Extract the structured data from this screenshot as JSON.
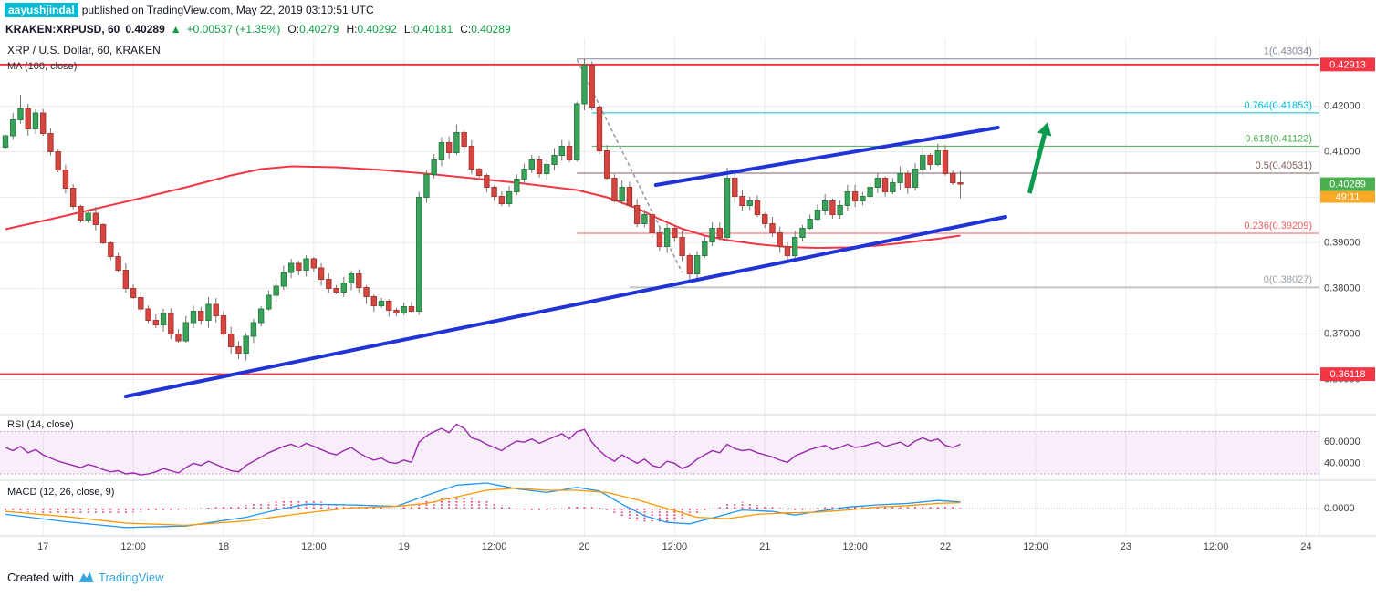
{
  "page": {
    "attribution": {
      "username": "aayushjindal",
      "text": "published on TradingView.com, May 22, 2019 03:10:51 UTC"
    },
    "symbol_bar": {
      "symbol": "KRAKEN:XRPUSD, 60",
      "last": "0.40289",
      "up_arrow": "▲",
      "change": "+0.00537 (+1.35%)",
      "ohlc": [
        {
          "k": "O:",
          "v": "0.40279"
        },
        {
          "k": "H:",
          "v": "0.40292"
        },
        {
          "k": "L:",
          "v": "0.40181"
        },
        {
          "k": "C:",
          "v": "0.40289"
        }
      ]
    },
    "footer": {
      "created_with": "Created with",
      "brand": "TradingView"
    }
  },
  "chart_data": {
    "type": "candlestick",
    "title": "XRP / U.S. Dollar, 60, KRAKEN",
    "ma_label": "MA (100, close)",
    "rsi_label": "RSI (14, close)",
    "macd_label": "MACD (12, 26, close, 9)",
    "price_range": [
      0.3523,
      0.4349
    ],
    "price_axis": {
      "values": [
        0.42,
        0.41,
        0.4,
        0.39,
        0.38,
        0.37,
        0.36
      ],
      "decimals": 5
    },
    "x_ticks": [
      [
        "17",
        5
      ],
      [
        "12:00",
        17
      ],
      [
        "18",
        29
      ],
      [
        "12:00",
        41
      ],
      [
        "19",
        53
      ],
      [
        "12:00",
        65
      ],
      [
        "20",
        77
      ],
      [
        "12:00",
        89
      ],
      [
        "21",
        101
      ],
      [
        "12:00",
        113
      ],
      [
        "22",
        125
      ],
      [
        "12:00",
        137
      ],
      [
        "23",
        149
      ],
      [
        "12:00",
        161
      ],
      [
        "24",
        173
      ]
    ],
    "hlines": [
      0.42913,
      0.36118
    ],
    "badges": [
      {
        "text": "0.42913",
        "value": 0.42913,
        "bg": "#f23645",
        "fg": "#ffffff",
        "h": 15,
        "dy": 0
      },
      {
        "text": "0.40289",
        "value": 0.40289,
        "bg": "#4caf50",
        "fg": "#ffffff",
        "h": 15,
        "dy": 0
      },
      {
        "text": "49:11",
        "value": 0.40289,
        "bg": "#f7a928",
        "fg": "#ffffff",
        "h": 13,
        "dy": 14
      },
      {
        "text": "0.36118",
        "value": 0.36118,
        "bg": "#f23645",
        "fg": "#ffffff",
        "h": 15,
        "dy": 0
      }
    ],
    "fib_levels": [
      {
        "label": "1(0.43034)",
        "value": 0.43034,
        "color": "#7f8796",
        "start_i": 76
      },
      {
        "label": "0.764(0.41853)",
        "value": 0.41853,
        "color": "#00bcd4",
        "start_i": 78
      },
      {
        "label": "0.618(0.41122)",
        "value": 0.41122,
        "color": "#4caf50",
        "start_i": 78
      },
      {
        "label": "0.5(0.40531)",
        "value": 0.40531,
        "color": "#836161",
        "start_i": 76
      },
      {
        "label": "0.236(0.39209)",
        "value": 0.39209,
        "color": "#ef5f67",
        "start_i": 76
      },
      {
        "label": "0(0.38027)",
        "value": 0.38027,
        "color": "#9aa0a6",
        "start_i": 83
      }
    ],
    "trendlines": [
      {
        "i1": 16,
        "p1": 0.3563,
        "i2": 133,
        "p2": 0.3957
      },
      {
        "i1": 86.5,
        "p1": 0.4027,
        "i2": 132,
        "p2": 0.4153
      }
    ],
    "dashed_line": {
      "i1": 76,
      "p1": 0.4302,
      "i2": 90,
      "p2": 0.3835
    },
    "arrow": {
      "i1": 136.2,
      "p1": 0.4009,
      "i2": 138.6,
      "p2": 0.4165
    },
    "candles": {
      "first_open": 0.411,
      "closes": [
        0.4135,
        0.417,
        0.4195,
        0.415,
        0.4185,
        0.414,
        0.41,
        0.406,
        0.402,
        0.398,
        0.395,
        0.3965,
        0.394,
        0.39,
        0.387,
        0.384,
        0.38,
        0.378,
        0.3755,
        0.373,
        0.372,
        0.3745,
        0.37,
        0.3685,
        0.3725,
        0.375,
        0.373,
        0.3765,
        0.374,
        0.37,
        0.3672,
        0.3658,
        0.3695,
        0.3725,
        0.3755,
        0.3785,
        0.3805,
        0.3835,
        0.3855,
        0.384,
        0.3865,
        0.3845,
        0.382,
        0.38,
        0.3792,
        0.3812,
        0.3832,
        0.3802,
        0.3782,
        0.3762,
        0.3772,
        0.3752,
        0.3746,
        0.376,
        0.375,
        0.4,
        0.405,
        0.4082,
        0.412,
        0.4098,
        0.4142,
        0.4112,
        0.4062,
        0.4048,
        0.4022,
        0.4002,
        0.3986,
        0.4012,
        0.404,
        0.4062,
        0.4082,
        0.4052,
        0.4072,
        0.4092,
        0.4112,
        0.4082,
        0.4205,
        0.429,
        0.4198,
        0.4102,
        0.4042,
        0.3992,
        0.4022,
        0.3982,
        0.3942,
        0.3962,
        0.3922,
        0.3892,
        0.3932,
        0.3912,
        0.3872,
        0.3832,
        0.3872,
        0.3902,
        0.3932,
        0.3912,
        0.4042,
        0.4002,
        0.3982,
        0.3992,
        0.3962,
        0.3942,
        0.3922,
        0.3892,
        0.3872,
        0.3912,
        0.3932,
        0.3952,
        0.3972,
        0.3992,
        0.3962,
        0.3982,
        0.4012,
        0.3992,
        0.4002,
        0.4022,
        0.4042,
        0.4012,
        0.4032,
        0.4052,
        0.4022,
        0.4062,
        0.4092,
        0.4072,
        0.4102,
        0.4052,
        0.4032,
        0.40289
      ],
      "wick_overrides": {
        "2": {
          "high": 0.4225
        },
        "31": {
          "low": 0.3645
        },
        "55": {
          "low": 0.3742,
          "high": 0.4012
        },
        "60": {
          "high": 0.416
        },
        "77": {
          "high": 0.43034
        },
        "78": {
          "high": 0.4298
        },
        "91": {
          "low": 0.3818
        },
        "96": {
          "high": 0.4065
        },
        "122": {
          "high": 0.4112
        },
        "124": {
          "high": 0.4118
        },
        "127": {
          "high": 0.4058,
          "low": 0.3998
        }
      }
    },
    "ma_points": [
      [
        0,
        0.393
      ],
      [
        6,
        0.3952
      ],
      [
        12,
        0.3975
      ],
      [
        18,
        0.3998
      ],
      [
        24,
        0.4022
      ],
      [
        30,
        0.4048
      ],
      [
        34,
        0.4062
      ],
      [
        38,
        0.4068
      ],
      [
        44,
        0.4066
      ],
      [
        50,
        0.406
      ],
      [
        56,
        0.4052
      ],
      [
        62,
        0.4042
      ],
      [
        68,
        0.4032
      ],
      [
        72,
        0.4024
      ],
      [
        76,
        0.4016
      ],
      [
        80,
        0.4
      ],
      [
        84,
        0.3976
      ],
      [
        87,
        0.3952
      ],
      [
        90,
        0.3931
      ],
      [
        93,
        0.3916
      ],
      [
        96,
        0.3906
      ],
      [
        100,
        0.3897
      ],
      [
        104,
        0.3891
      ],
      [
        108,
        0.3889
      ],
      [
        112,
        0.389
      ],
      [
        116,
        0.3894
      ],
      [
        120,
        0.3901
      ],
      [
        124,
        0.3909
      ],
      [
        127,
        0.3916
      ]
    ],
    "rsi": {
      "range": [
        24,
        86
      ],
      "band": [
        30,
        70
      ],
      "labels": [
        60,
        40
      ],
      "values": [
        55,
        52,
        56,
        50,
        53,
        48,
        45,
        42,
        40,
        38,
        36,
        39,
        37,
        34,
        32,
        33,
        30,
        31,
        29,
        30,
        32,
        35,
        33,
        31,
        36,
        40,
        38,
        42,
        39,
        36,
        33,
        32,
        38,
        42,
        46,
        50,
        53,
        56,
        58,
        55,
        59,
        56,
        53,
        50,
        48,
        52,
        55,
        50,
        46,
        43,
        45,
        41,
        40,
        43,
        41,
        60,
        66,
        70,
        73,
        69,
        77,
        73,
        64,
        62,
        58,
        55,
        52,
        57,
        61,
        60,
        63,
        59,
        62,
        65,
        68,
        63,
        70,
        72,
        60,
        52,
        46,
        42,
        48,
        44,
        40,
        44,
        38,
        36,
        42,
        40,
        35,
        38,
        44,
        48,
        52,
        50,
        58,
        54,
        52,
        53,
        50,
        48,
        46,
        43,
        41,
        47,
        50,
        53,
        55,
        57,
        53,
        55,
        58,
        55,
        56,
        58,
        60,
        56,
        58,
        60,
        56,
        61,
        64,
        61,
        63,
        57,
        55,
        58
      ]
    },
    "macd": {
      "axis_label": "0.0000",
      "macd_points": [
        [
          0,
          -0.0008
        ],
        [
          8,
          -0.0018
        ],
        [
          16,
          -0.0026
        ],
        [
          24,
          -0.0024
        ],
        [
          32,
          -0.0012
        ],
        [
          36,
          -0.0002
        ],
        [
          40,
          0.0006
        ],
        [
          46,
          0.0005
        ],
        [
          52,
          0.0003
        ],
        [
          56,
          0.0018
        ],
        [
          60,
          0.0032
        ],
        [
          64,
          0.0035
        ],
        [
          68,
          0.0027
        ],
        [
          72,
          0.0022
        ],
        [
          76,
          0.0029
        ],
        [
          79,
          0.0024
        ],
        [
          82,
          0.0006
        ],
        [
          85,
          -0.001
        ],
        [
          88,
          -0.0019
        ],
        [
          91,
          -0.0021
        ],
        [
          94,
          -0.0013
        ],
        [
          98,
          -0.0002
        ],
        [
          102,
          -0.0004
        ],
        [
          105,
          -0.0009
        ],
        [
          108,
          -0.0004
        ],
        [
          112,
          0.0002
        ],
        [
          116,
          0.0005
        ],
        [
          120,
          0.0007
        ],
        [
          124,
          0.0011
        ],
        [
          127,
          0.0009
        ]
      ],
      "signal_points": [
        [
          0,
          -0.0004
        ],
        [
          8,
          -0.0011
        ],
        [
          16,
          -0.002
        ],
        [
          24,
          -0.0023
        ],
        [
          32,
          -0.0017
        ],
        [
          40,
          -0.0006
        ],
        [
          46,
          0.0001
        ],
        [
          52,
          0.0003
        ],
        [
          56,
          0.0007
        ],
        [
          60,
          0.0016
        ],
        [
          64,
          0.0025
        ],
        [
          68,
          0.0028
        ],
        [
          72,
          0.0025
        ],
        [
          76,
          0.0025
        ],
        [
          80,
          0.0022
        ],
        [
          84,
          0.0012
        ],
        [
          88,
          0.0
        ],
        [
          92,
          -0.0012
        ],
        [
          96,
          -0.0014
        ],
        [
          100,
          -0.0008
        ],
        [
          104,
          -0.0006
        ],
        [
          108,
          -0.0005
        ],
        [
          112,
          -0.0002
        ],
        [
          116,
          0.0002
        ],
        [
          120,
          0.0004
        ],
        [
          124,
          0.0007
        ],
        [
          127,
          0.0008
        ]
      ]
    },
    "colors": {
      "up": "#3aa35a",
      "up_border": "#2a7d43",
      "down": "#d6453f",
      "down_border": "#a83832",
      "wick": "#737375",
      "ma": "#f23645",
      "trend": "#2033d6",
      "arrow": "#0c9c4f",
      "dashed": "#9598a1",
      "rsi": "#9c27b0",
      "rsi_band": "rgba(156,39,176,0.08)",
      "rsi_band_edge": "rgba(156,39,176,0.45)",
      "macd_line": "#2196f3",
      "signal_line": "#ff9800",
      "hist": "#ec407a",
      "grid": "#ececec",
      "separator": "#d1d4dc",
      "axis_text": "#3c4043",
      "red_line": "#f23645"
    }
  }
}
